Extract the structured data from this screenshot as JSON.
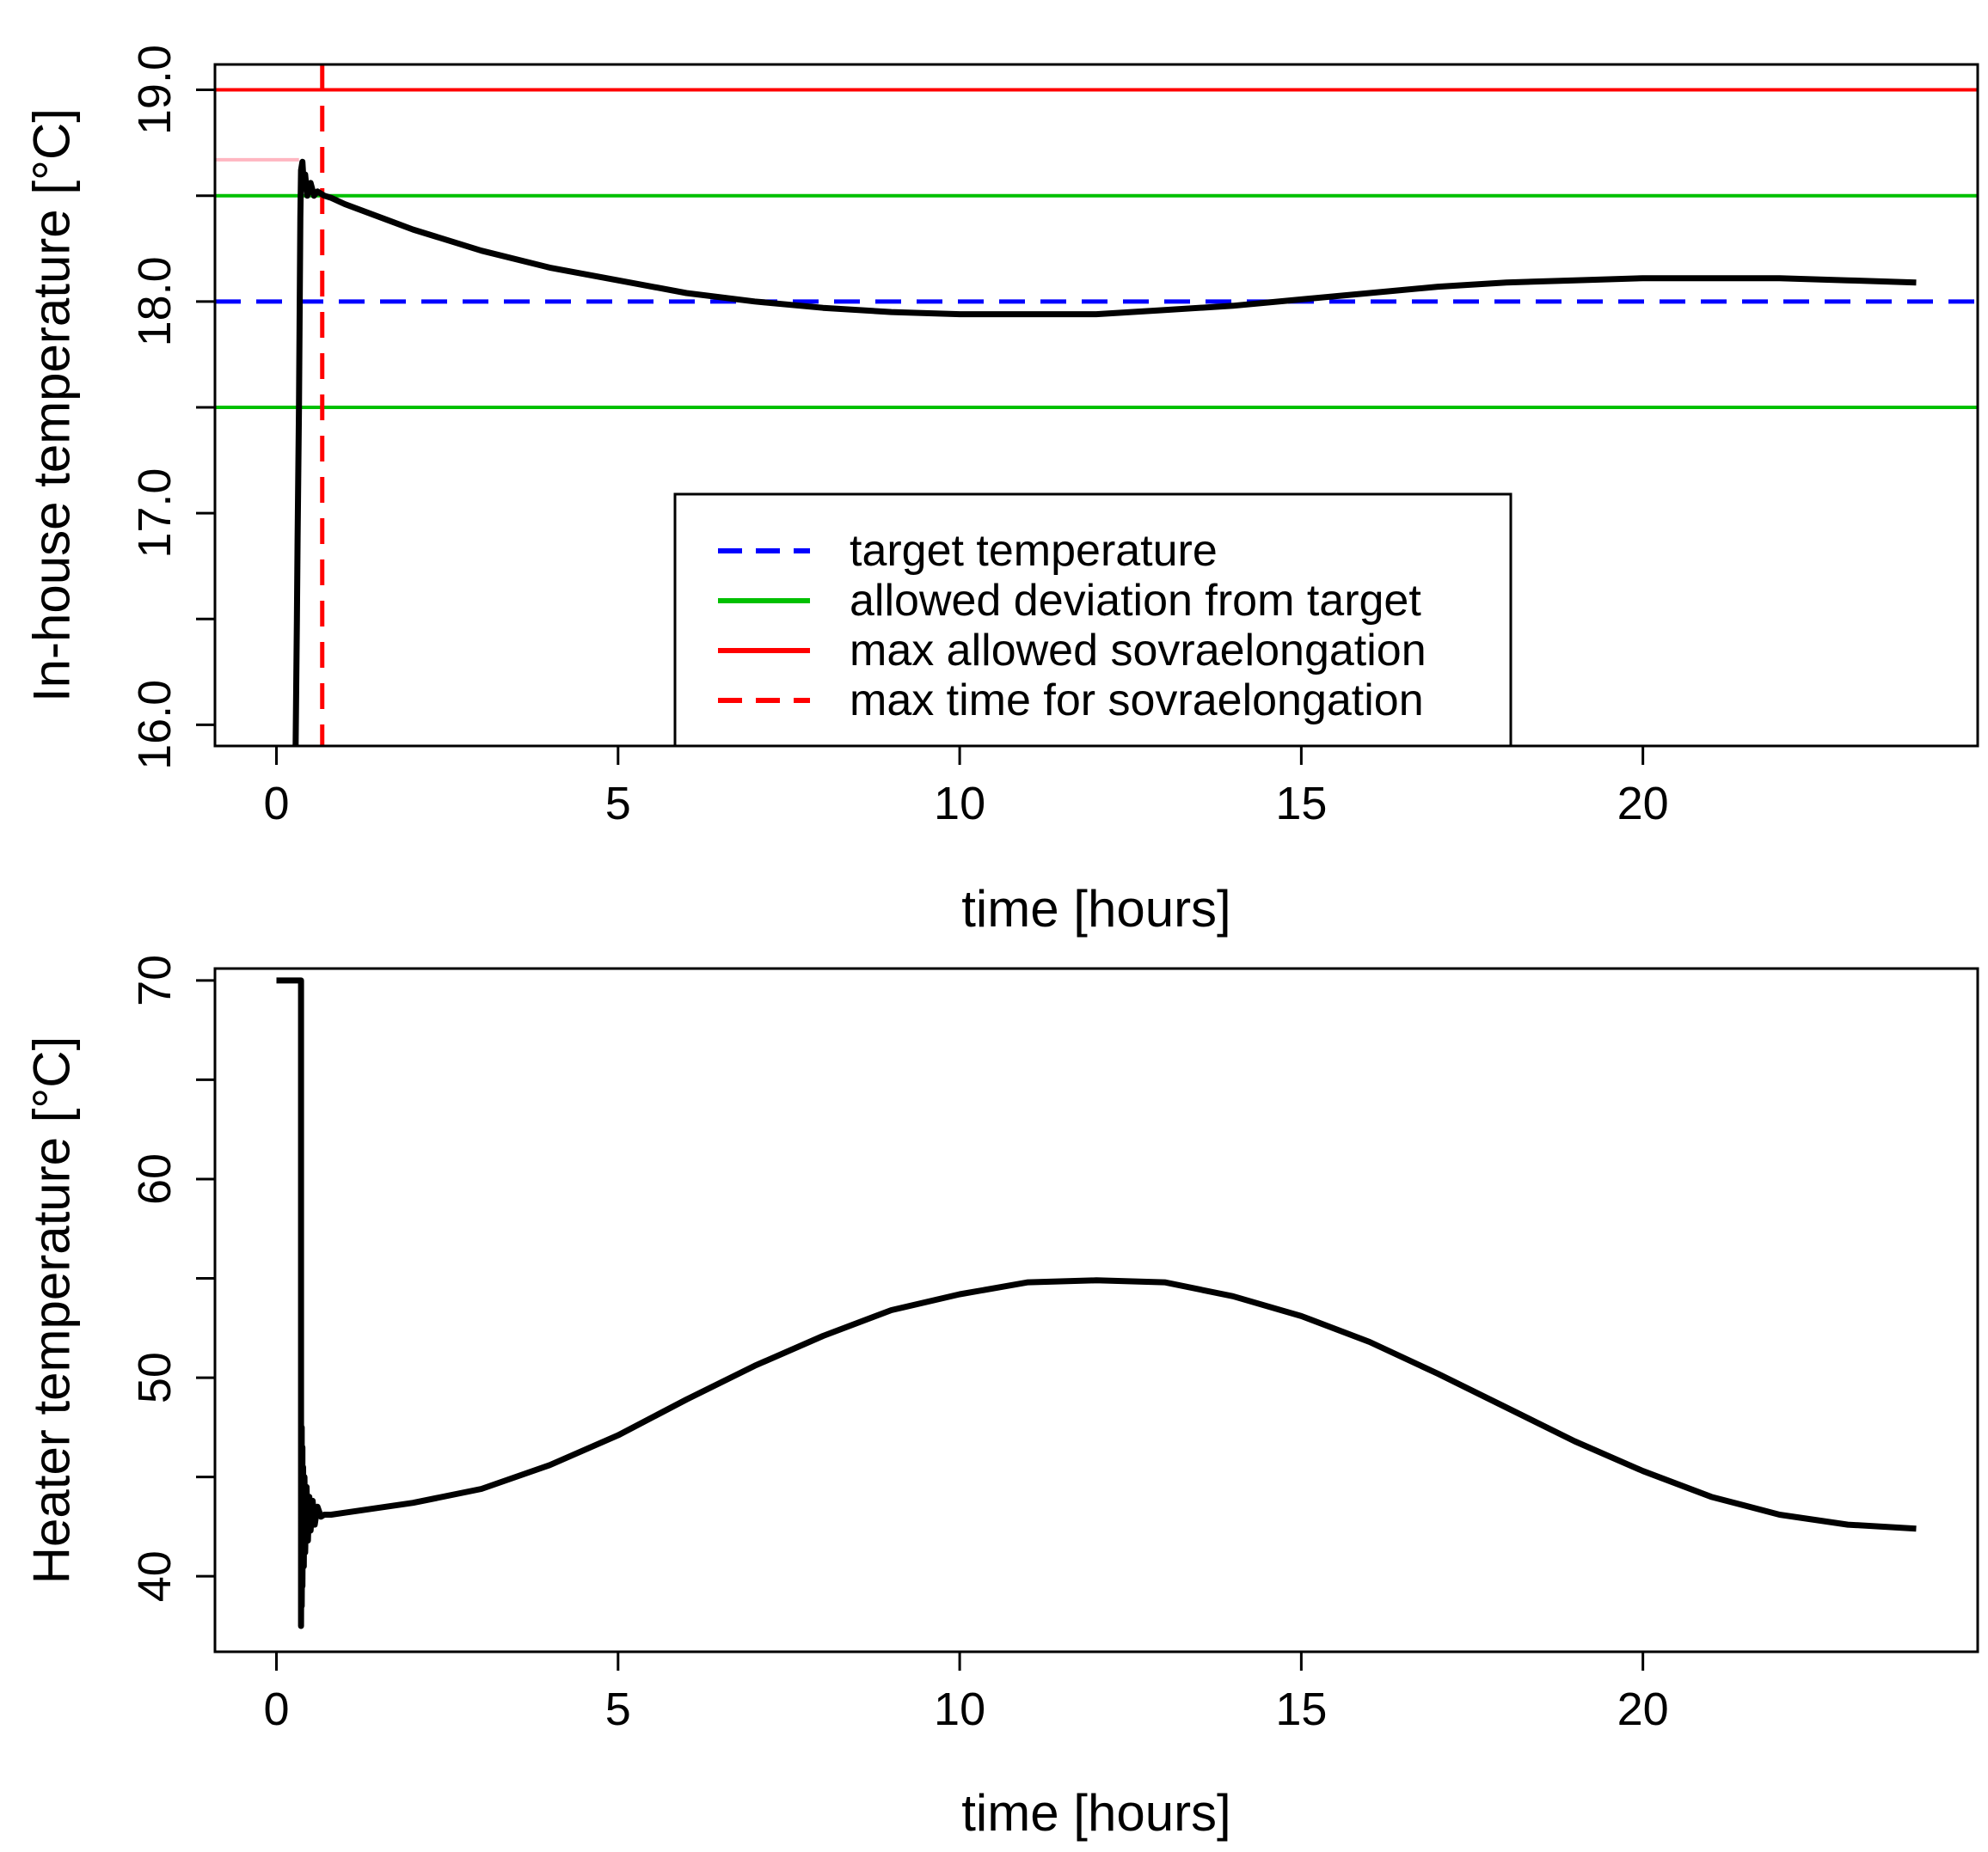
{
  "chart_data": [
    {
      "type": "line",
      "xlabel": "time [hours]",
      "ylabel": "In-house temperature [°C]",
      "xlim": [
        -0.9,
        24.9
      ],
      "ylim": [
        15.9,
        19.12
      ],
      "xticks": [
        0,
        5,
        10,
        15,
        20
      ],
      "xtick_labels": [
        "0",
        "5",
        "10",
        "15",
        "20"
      ],
      "yticks": [
        16.0,
        16.5,
        17.0,
        17.5,
        18.0,
        18.5,
        19.0
      ],
      "ytick_labels": [
        "16.0",
        "",
        "17.0",
        "",
        "18.0",
        "",
        "19.0"
      ],
      "reference_lines": [
        {
          "kind": "horizontal",
          "value": 18.0,
          "color": "#0000ff",
          "dashed": true,
          "name": "target temperature"
        },
        {
          "kind": "horizontal",
          "value": 18.5,
          "color": "#00c000",
          "dashed": false,
          "name": "allowed deviation from target (upper)"
        },
        {
          "kind": "horizontal",
          "value": 17.5,
          "color": "#00c000",
          "dashed": false,
          "name": "allowed deviation from target (lower)"
        },
        {
          "kind": "horizontal",
          "value": 19.0,
          "color": "#ff0000",
          "dashed": false,
          "name": "max allowed sovraelongation"
        },
        {
          "kind": "vertical",
          "value": 0.67,
          "color": "#ff0000",
          "dashed": true,
          "name": "max time for sovraelongation"
        }
      ],
      "marker_segment": {
        "x": [
          -0.9,
          0.33
        ],
        "y": 18.67,
        "color": "#ffb6c1"
      },
      "series": [
        {
          "name": "in-house temperature",
          "color": "#000000",
          "x": [
            0.28,
            0.3,
            0.31,
            0.33,
            0.35,
            0.36,
            0.38,
            0.4,
            0.42,
            0.45,
            0.5,
            0.55,
            0.6,
            0.7,
            0.8,
            1,
            2,
            3,
            4,
            5,
            6,
            7,
            8,
            9,
            10,
            11,
            12,
            13,
            14,
            15,
            16,
            17,
            18,
            19,
            20,
            21,
            22,
            23,
            24
          ],
          "y": [
            15.9,
            16.5,
            16.88,
            17.5,
            18.4,
            18.62,
            18.66,
            18.55,
            18.6,
            18.5,
            18.56,
            18.5,
            18.52,
            18.5,
            18.49,
            18.46,
            18.34,
            18.24,
            18.16,
            18.1,
            18.04,
            18.0,
            17.97,
            17.95,
            17.94,
            17.94,
            17.94,
            17.96,
            17.98,
            18.01,
            18.04,
            18.07,
            18.09,
            18.1,
            18.11,
            18.11,
            18.11,
            18.1,
            18.09
          ]
        }
      ],
      "legend": {
        "position": "bottom-center",
        "entries": [
          {
            "label": "target temperature",
            "color": "#0000ff",
            "dashed": true
          },
          {
            "label": "allowed deviation from target",
            "color": "#00c000",
            "dashed": false
          },
          {
            "label": "max allowed sovraelongation",
            "color": "#ff0000",
            "dashed": false
          },
          {
            "label": "max time for sovraelongation",
            "color": "#ff0000",
            "dashed": true
          }
        ]
      }
    },
    {
      "type": "line",
      "xlabel": "time [hours]",
      "ylabel": "Heater temperature [°C]",
      "xlim": [
        -0.9,
        24.9
      ],
      "ylim": [
        36.2,
        70.6
      ],
      "xticks": [
        0,
        5,
        10,
        15,
        20
      ],
      "xtick_labels": [
        "0",
        "5",
        "10",
        "15",
        "20"
      ],
      "yticks": [
        40,
        45,
        50,
        55,
        60,
        65,
        70
      ],
      "ytick_labels": [
        "40",
        "",
        "50",
        "",
        "60",
        "",
        "70"
      ],
      "series": [
        {
          "name": "heater temperature",
          "color": "#000000",
          "x": [
            0,
            0.36,
            0.36,
            0.37,
            0.37,
            0.38,
            0.38,
            0.39,
            0.4,
            0.41,
            0.42,
            0.44,
            0.46,
            0.48,
            0.5,
            0.53,
            0.56,
            0.6,
            0.65,
            0.7,
            0.8,
            1,
            2,
            3,
            4,
            5,
            6,
            7,
            8,
            9,
            10,
            11,
            12,
            13,
            14,
            15,
            16,
            17,
            18,
            19,
            20,
            21,
            22,
            23,
            24
          ],
          "y": [
            70,
            70,
            37.5,
            47.5,
            38.5,
            46.5,
            39.5,
            45.5,
            40.5,
            45,
            41.2,
            44.5,
            41.8,
            44,
            42.3,
            43.8,
            42.6,
            43.5,
            43.0,
            43.1,
            43.1,
            43.2,
            43.7,
            44.4,
            45.6,
            47.1,
            48.9,
            50.6,
            52.1,
            53.4,
            54.2,
            54.8,
            54.9,
            54.8,
            54.1,
            53.1,
            51.8,
            50.2,
            48.5,
            46.8,
            45.3,
            44.0,
            43.1,
            42.6,
            42.4
          ]
        }
      ]
    }
  ]
}
